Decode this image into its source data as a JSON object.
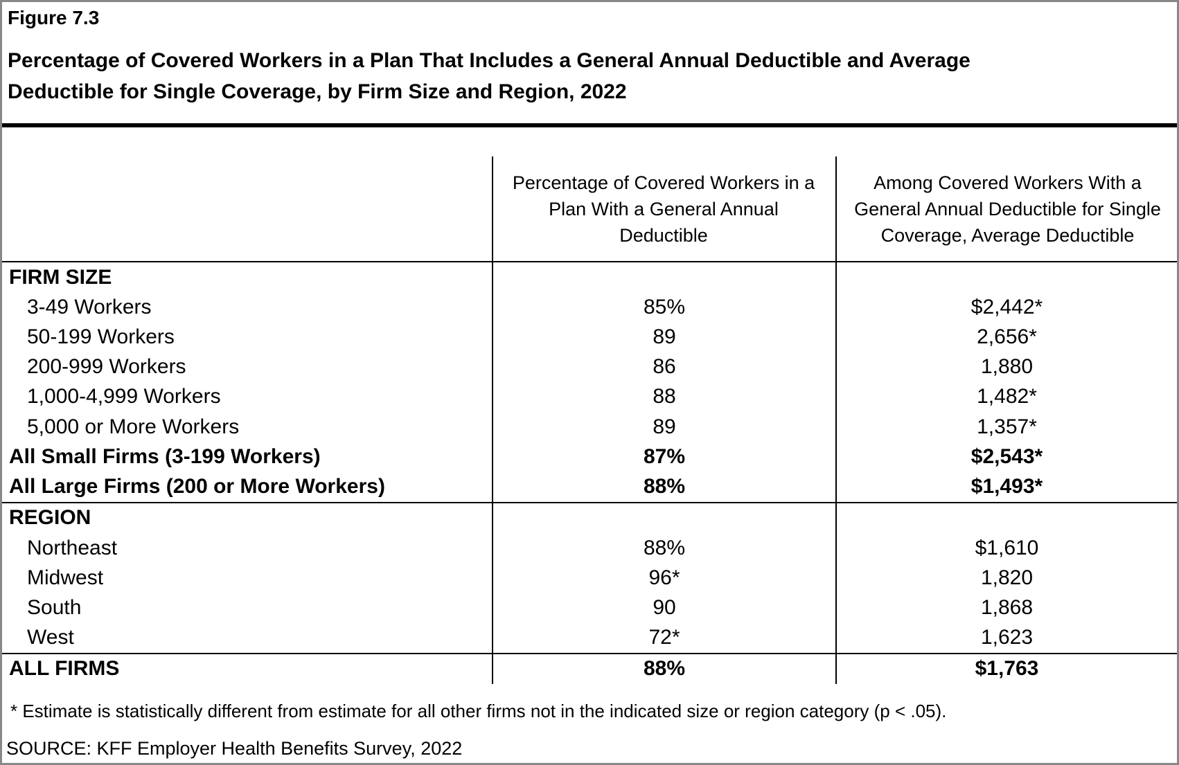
{
  "figure_label": "Figure 7.3",
  "title_lines": [
    "Percentage of Covered Workers in a Plan That Includes a General Annual Deductible and Average",
    "Deductible for Single Coverage, by Firm Size and Region, 2022"
  ],
  "chart_data": {
    "type": "table",
    "title": "Percentage of Covered Workers in a Plan That Includes a General Annual Deductible and Average Deductible for Single Coverage, by Firm Size and Region, 2022",
    "columns": [
      {
        "text": "Percentage of Covered Workers in a Plan With a General Annual Deductible",
        "lines": [
          "Percentage of Covered Workers in a",
          "Plan With a General Annual",
          "Deductible"
        ]
      },
      {
        "text": "Among Covered Workers With a General Annual Deductible for Single Coverage, Average Deductible",
        "lines": [
          "Among Covered Workers With a",
          "General Annual Deductible for Single",
          "Coverage, Average Deductible"
        ]
      }
    ],
    "rows": [
      {
        "label": "FIRM SIZE",
        "percent": "",
        "deductible": "",
        "kind": "section",
        "rule_above": false
      },
      {
        "label": "3-49 Workers",
        "percent": "85%",
        "deductible": "$2,442*",
        "kind": "item",
        "rule_above": false
      },
      {
        "label": "50-199 Workers",
        "percent": "89",
        "deductible": "2,656*",
        "kind": "item",
        "rule_above": false
      },
      {
        "label": "200-999 Workers",
        "percent": "86",
        "deductible": "1,880",
        "kind": "item",
        "rule_above": false
      },
      {
        "label": "1,000-4,999 Workers",
        "percent": "88",
        "deductible": "1,482*",
        "kind": "item",
        "rule_above": false
      },
      {
        "label": "5,000 or More Workers",
        "percent": "89",
        "deductible": "1,357*",
        "kind": "item",
        "rule_above": false
      },
      {
        "label": "All Small Firms (3-199 Workers)",
        "percent": "87%",
        "deductible": "$2,543*",
        "kind": "summary",
        "rule_above": false
      },
      {
        "label": "All Large Firms (200 or More Workers)",
        "percent": "88%",
        "deductible": "$1,493*",
        "kind": "summary",
        "rule_above": false
      },
      {
        "label": "REGION",
        "percent": "",
        "deductible": "",
        "kind": "section",
        "rule_above": true
      },
      {
        "label": "Northeast",
        "percent": "88%",
        "deductible": "$1,610",
        "kind": "item",
        "rule_above": false
      },
      {
        "label": "Midwest",
        "percent": "96*",
        "deductible": "1,820",
        "kind": "item",
        "rule_above": false
      },
      {
        "label": "South",
        "percent": "90",
        "deductible": "1,868",
        "kind": "item",
        "rule_above": false
      },
      {
        "label": "West",
        "percent": "72*",
        "deductible": "1,623",
        "kind": "item",
        "rule_above": false
      },
      {
        "label": "ALL FIRMS",
        "percent": "88%",
        "deductible": "$1,763",
        "kind": "summary",
        "rule_above": true
      }
    ]
  },
  "footnote": "* Estimate is statistically different from estimate for all other firms not in the indicated size or region category (p < .05).",
  "source": "SOURCE: KFF Employer Health Benefits Survey, 2022",
  "colors": {
    "text": "#000000",
    "rules": "#000000",
    "background": "#ffffff",
    "page_border": "#888888"
  }
}
